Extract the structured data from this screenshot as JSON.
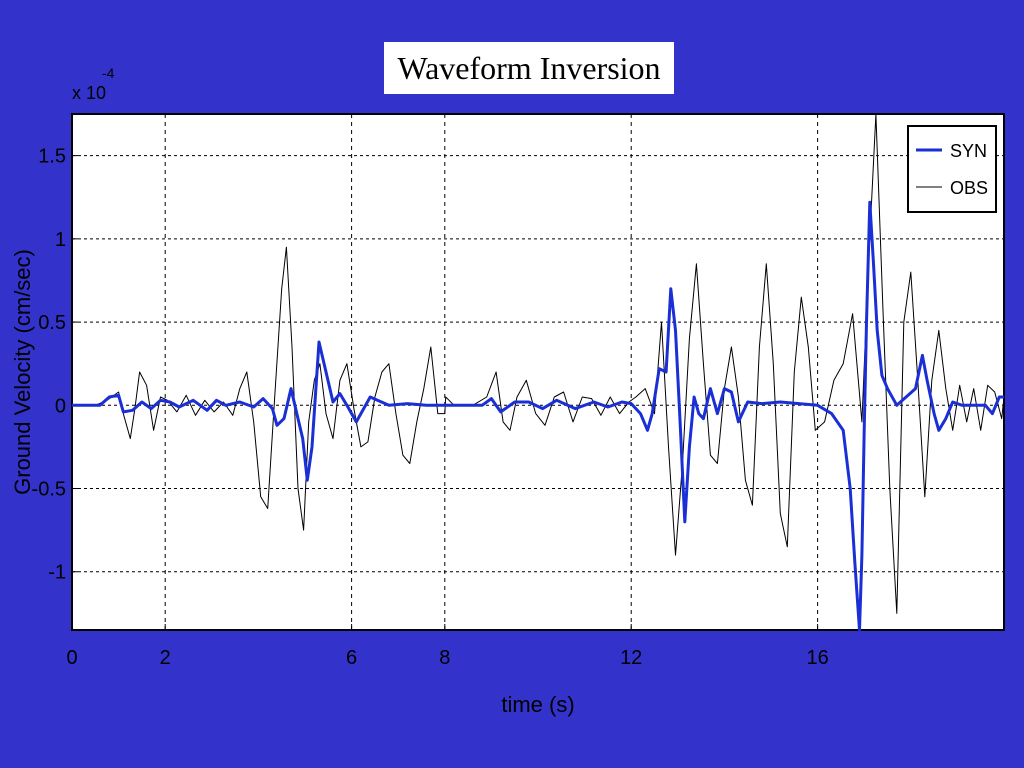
{
  "slide": {
    "background": "#3333cc",
    "title": "Waveform Inversion"
  },
  "chart_data": {
    "type": "line",
    "title": "Waveform Inversion",
    "xlabel": "time (s)",
    "ylabel": "Ground Velocity  (cm/sec)",
    "y_multiplier": "x 10",
    "y_multiplier_exp": "-4",
    "xlim": [
      0,
      20
    ],
    "ylim": [
      -1.35,
      1.75
    ],
    "xticks": [
      0,
      2,
      6,
      8,
      12,
      16
    ],
    "xtick_labels": [
      "0",
      "2",
      "6",
      "8",
      "12",
      "16"
    ],
    "yticks": [
      -1,
      -0.5,
      0,
      0.5,
      1,
      1.5
    ],
    "ytick_labels": [
      "-1",
      "-0.5",
      "0",
      "0.5",
      "1",
      "1.5"
    ],
    "grid": true,
    "legend_position": "top-right",
    "series": [
      {
        "name": "SYN",
        "color": "#1a2fd6",
        "line_width": 3,
        "x": [
          0,
          0.6,
          0.8,
          1.0,
          1.1,
          1.3,
          1.5,
          1.7,
          1.9,
          2.1,
          2.3,
          2.6,
          2.9,
          3.1,
          3.3,
          3.6,
          3.9,
          4.1,
          4.3,
          4.4,
          4.55,
          4.7,
          4.85,
          4.95,
          5.05,
          5.15,
          5.3,
          5.45,
          5.6,
          5.75,
          5.9,
          6.1,
          6.4,
          6.8,
          7.2,
          7.6,
          8,
          8.5,
          8.8,
          9.0,
          9.2,
          9.5,
          9.8,
          10.1,
          10.4,
          10.8,
          11.2,
          11.5,
          11.8,
          12.0,
          12.2,
          12.35,
          12.45,
          12.6,
          12.75,
          12.85,
          12.95,
          13.05,
          13.15,
          13.25,
          13.35,
          13.45,
          13.55,
          13.7,
          13.85,
          14.0,
          14.15,
          14.3,
          14.5,
          14.8,
          15.2,
          15.6,
          16.0,
          16.3,
          16.55,
          16.7,
          16.8,
          16.9,
          16.95,
          17.0,
          17.05,
          17.12,
          17.2,
          17.28,
          17.38,
          17.5,
          17.7,
          17.9,
          18.1,
          18.25,
          18.35,
          18.5,
          18.6,
          18.75,
          18.9,
          19.1,
          19.4,
          19.6,
          19.75,
          19.9,
          20
        ],
        "y": [
          0,
          0,
          0.05,
          0.06,
          -0.04,
          -0.03,
          0.02,
          -0.02,
          0.03,
          0.02,
          -0.01,
          0.03,
          -0.03,
          0.03,
          0.0,
          0.02,
          -0.01,
          0.04,
          -0.02,
          -0.12,
          -0.08,
          0.1,
          -0.08,
          -0.2,
          -0.45,
          -0.25,
          0.38,
          0.2,
          0.02,
          0.07,
          0.0,
          -0.1,
          0.05,
          0.0,
          0.01,
          0.0,
          0,
          0,
          0,
          0.04,
          -0.04,
          0.02,
          0.02,
          -0.02,
          0.03,
          -0.02,
          0.02,
          -0.01,
          0.02,
          0.01,
          -0.05,
          -0.15,
          -0.05,
          0.22,
          0.2,
          0.7,
          0.45,
          -0.1,
          -0.7,
          -0.25,
          0.05,
          -0.05,
          -0.08,
          0.1,
          -0.05,
          0.1,
          0.08,
          -0.1,
          0.02,
          0.01,
          0.02,
          0.01,
          0,
          -0.05,
          -0.15,
          -0.5,
          -0.95,
          -1.35,
          -0.9,
          -0.15,
          0.5,
          1.22,
          0.85,
          0.45,
          0.18,
          0.1,
          0.0,
          0.05,
          0.1,
          0.3,
          0.15,
          -0.05,
          -0.15,
          -0.08,
          0.02,
          0.0,
          0.0,
          0.0,
          -0.05,
          0.05,
          0.05
        ]
      },
      {
        "name": "OBS",
        "color": "#000000",
        "line_width": 1,
        "x": [
          0,
          0.5,
          0.75,
          1.0,
          1.1,
          1.25,
          1.35,
          1.45,
          1.6,
          1.75,
          1.9,
          2.05,
          2.25,
          2.45,
          2.65,
          2.85,
          3.05,
          3.25,
          3.45,
          3.6,
          3.75,
          3.9,
          4.05,
          4.2,
          4.35,
          4.5,
          4.6,
          4.72,
          4.85,
          4.97,
          5.08,
          5.2,
          5.32,
          5.45,
          5.6,
          5.75,
          5.9,
          6.05,
          6.2,
          6.35,
          6.5,
          6.65,
          6.8,
          6.95,
          7.1,
          7.25,
          7.4,
          7.55,
          7.7,
          7.85,
          8.0,
          8.02,
          8.2,
          8.6,
          8.9,
          9.1,
          9.25,
          9.4,
          9.55,
          9.75,
          9.95,
          10.15,
          10.35,
          10.55,
          10.75,
          10.95,
          11.15,
          11.35,
          11.55,
          11.75,
          11.95,
          12.1,
          12.3,
          12.5,
          12.65,
          12.8,
          12.95,
          13.1,
          13.25,
          13.4,
          13.55,
          13.7,
          13.85,
          14.0,
          14.15,
          14.3,
          14.45,
          14.6,
          14.75,
          14.9,
          15.05,
          15.2,
          15.35,
          15.5,
          15.65,
          15.8,
          15.95,
          16.15,
          16.35,
          16.55,
          16.75,
          16.95,
          17.1,
          17.25,
          17.4,
          17.55,
          17.7,
          17.85,
          18.0,
          18.15,
          18.3,
          18.45,
          18.6,
          18.75,
          18.9,
          19.05,
          19.2,
          19.35,
          19.5,
          19.65,
          19.8,
          19.95,
          20
        ],
        "y": [
          0,
          0,
          0.03,
          0.08,
          -0.05,
          -0.2,
          -0.02,
          0.2,
          0.12,
          -0.15,
          0.05,
          0.03,
          -0.04,
          0.06,
          -0.06,
          0.03,
          -0.04,
          0.02,
          -0.06,
          0.1,
          0.2,
          -0.1,
          -0.55,
          -0.62,
          0.05,
          0.7,
          0.95,
          0.35,
          -0.5,
          -0.75,
          -0.1,
          0.15,
          0.25,
          -0.05,
          -0.2,
          0.15,
          0.25,
          -0.02,
          -0.25,
          -0.22,
          0.05,
          0.2,
          0.25,
          -0.05,
          -0.3,
          -0.35,
          -0.1,
          0.1,
          0.35,
          -0.05,
          -0.05,
          0.05,
          0.0,
          0.0,
          0.05,
          0.2,
          -0.1,
          -0.15,
          0.05,
          0.15,
          -0.05,
          -0.12,
          0.05,
          0.08,
          -0.1,
          0.05,
          0.04,
          -0.06,
          0.05,
          -0.05,
          0.02,
          0.05,
          0.1,
          -0.05,
          0.5,
          -0.25,
          -0.9,
          -0.35,
          0.4,
          0.85,
          0.25,
          -0.3,
          -0.35,
          0.1,
          0.35,
          0.05,
          -0.45,
          -0.6,
          0.35,
          0.85,
          0.25,
          -0.65,
          -0.85,
          0.2,
          0.65,
          0.35,
          -0.15,
          -0.1,
          0.15,
          0.25,
          0.55,
          -0.1,
          0.9,
          1.75,
          0.6,
          -0.5,
          -1.25,
          0.5,
          0.8,
          0.15,
          -0.55,
          0.15,
          0.45,
          0.1,
          -0.15,
          0.12,
          -0.1,
          0.1,
          -0.15,
          0.12,
          0.08,
          -0.08,
          0.05
        ]
      }
    ]
  }
}
